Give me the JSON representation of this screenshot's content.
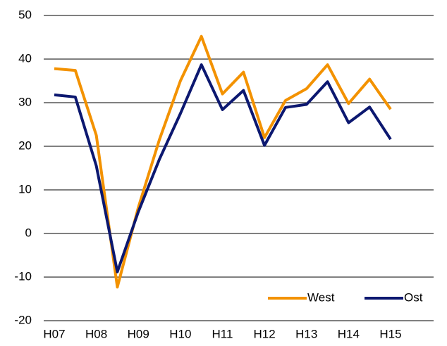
{
  "chart_data": {
    "type": "line",
    "categories": [
      "H07",
      null,
      "H08",
      null,
      "H09",
      null,
      "H10",
      null,
      "H11",
      null,
      "H12",
      null,
      "H13",
      null,
      "H14",
      null,
      "H15"
    ],
    "series": [
      {
        "name": "West",
        "color": "#f39200",
        "values": [
          37.8,
          37.4,
          22.5,
          -12.3,
          6,
          21.5,
          35,
          45.2,
          32,
          37,
          22,
          30.5,
          33.2,
          38.7,
          29.8,
          35.4,
          28.5
        ]
      },
      {
        "name": "Ost",
        "color": "#0c1870",
        "values": [
          31.8,
          31.3,
          15.5,
          -8.8,
          5,
          17,
          27.5,
          38.7,
          28.4,
          32.8,
          20.2,
          28.9,
          29.6,
          34.8,
          25.4,
          29,
          21.6
        ]
      }
    ],
    "ylim": [
      -20,
      50
    ],
    "yticks": [
      -20,
      -10,
      0,
      10,
      20,
      30,
      40,
      50
    ],
    "grid": true,
    "legend": "lower right"
  }
}
